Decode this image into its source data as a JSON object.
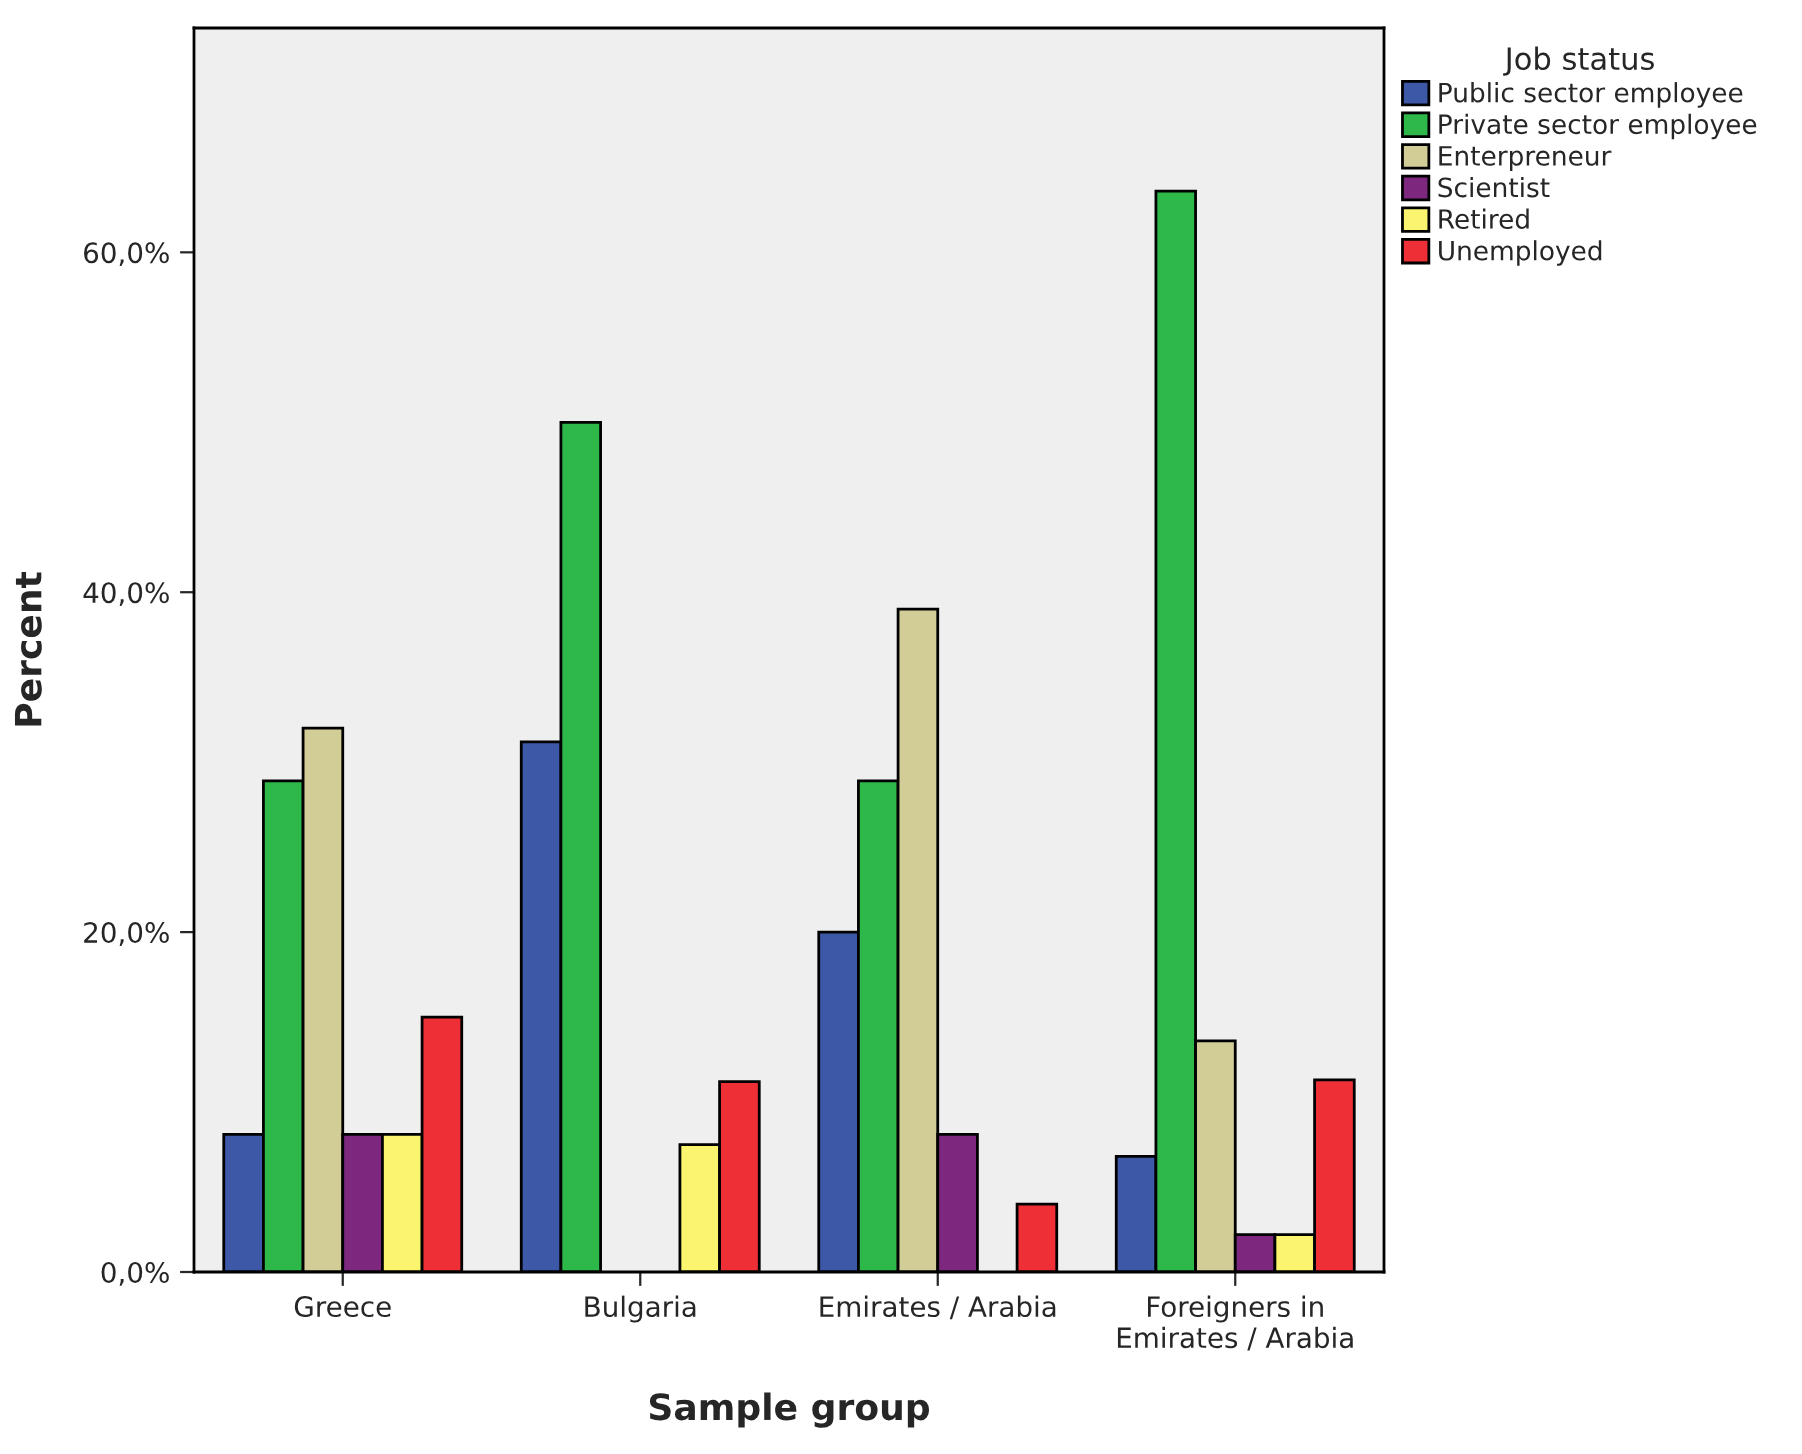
{
  "chart_data": {
    "type": "bar",
    "xlabel": "Sample group",
    "ylabel": "Percent",
    "legend_title": "Job status",
    "categories": [
      "Greece",
      "Bulgaria",
      "Emirates / Arabia",
      "Foreigners in\nEmirates / Arabia"
    ],
    "series": [
      {
        "name": "Public sector employee",
        "color": "#3e58a8",
        "values": [
          8.1,
          31.2,
          20.0,
          6.8
        ]
      },
      {
        "name": "Private sector employee",
        "color": "#2fb84a",
        "values": [
          28.9,
          50.0,
          28.9,
          63.6
        ]
      },
      {
        "name": "Enterpreneur",
        "color": "#d2cc96",
        "values": [
          32.0,
          null,
          39.0,
          13.6
        ]
      },
      {
        "name": "Scientist",
        "color": "#7d287e",
        "values": [
          8.1,
          null,
          8.1,
          2.2
        ]
      },
      {
        "name": "Retired",
        "color": "#faf46e",
        "values": [
          8.1,
          7.5,
          null,
          2.2
        ]
      },
      {
        "name": "Unemployed",
        "color": "#ee3036",
        "values": [
          15.0,
          11.2,
          4.0,
          11.3
        ]
      }
    ],
    "ylim": [
      0,
      73.2
    ],
    "yticks": [
      {
        "value": 0,
        "label": "0,0%"
      },
      {
        "value": 20,
        "label": "20,0%"
      },
      {
        "value": 40,
        "label": "40,0%"
      },
      {
        "value": 60,
        "label": "60,0%"
      }
    ],
    "grid": false,
    "legend": "top right"
  }
}
